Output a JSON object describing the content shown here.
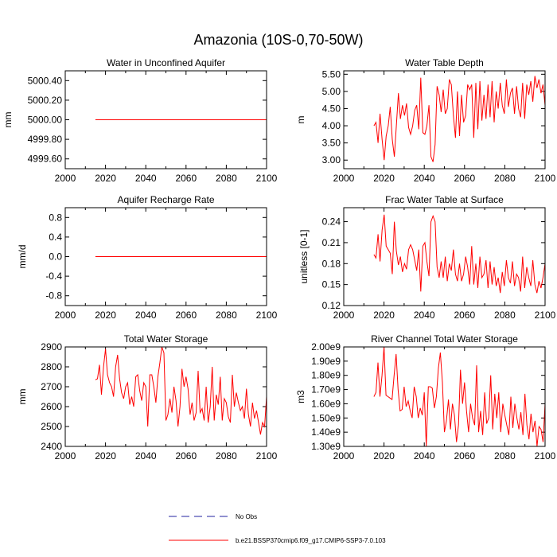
{
  "page_title": "Amazonia (10S-0,70-50W)",
  "colors": {
    "model": "#ff0000",
    "obs": "#2020a0",
    "axis": "#000000"
  },
  "legend": [
    {
      "label": "No Obs",
      "style": "dashed",
      "color": "#2020a0"
    },
    {
      "label": "b.e21.BSSP370cmip6.f09_g17.CMIP6-SSP3-7.0.103",
      "style": "solid",
      "color": "#ff0000"
    }
  ],
  "chart_data": [
    {
      "id": "p1",
      "type": "line",
      "title": "Water in Unconfined Aquifer",
      "ylabel": "mm",
      "xlim": [
        2000,
        2100
      ],
      "xticks": [
        2000,
        2020,
        2040,
        2060,
        2080,
        2100
      ],
      "ylim": [
        4999.5,
        5000.5
      ],
      "yticks": [
        4999.6,
        4999.8,
        5000.0,
        5000.2,
        5000.4
      ],
      "ytick_labels": [
        "4999.60",
        "4999.80",
        "5000.00",
        "5000.20",
        "5000.40"
      ],
      "series": [
        {
          "name": "b.e21.BSSP370cmip6.f09_g17.CMIP6-SSP3-7.0.103",
          "x_start": 2015,
          "x_end": 2100,
          "values": [
            5000.0,
            5000.0
          ]
        }
      ]
    },
    {
      "id": "p2",
      "type": "line",
      "title": "Water Table Depth",
      "ylabel": "m",
      "xlim": [
        2000,
        2100
      ],
      "xticks": [
        2000,
        2020,
        2040,
        2060,
        2080,
        2100
      ],
      "ylim": [
        2.75,
        5.6
      ],
      "yticks": [
        3.0,
        3.5,
        4.0,
        4.5,
        5.0,
        5.5
      ],
      "ytick_labels": [
        "3.00",
        "3.50",
        "4.00",
        "4.50",
        "5.00",
        "5.50"
      ],
      "series": [
        {
          "name": "b.e21.BSSP370cmip6.f09_g17.CMIP6-SSP3-7.0.103",
          "x_start": 2015,
          "x_end": 2100,
          "values": [
            4.0,
            4.1,
            3.5,
            4.35,
            3.6,
            3.0,
            3.7,
            4.0,
            4.55,
            3.6,
            3.1,
            4.0,
            4.95,
            4.2,
            4.6,
            4.3,
            4.65,
            3.95,
            3.75,
            4.0,
            4.45,
            4.6,
            3.9,
            5.4,
            3.8,
            3.75,
            4.0,
            4.6,
            3.1,
            2.95,
            3.45,
            5.15,
            4.9,
            4.4,
            5.05,
            4.35,
            4.5,
            5.35,
            5.2,
            4.3,
            3.65,
            5.0,
            3.7,
            4.9,
            4.1,
            4.3,
            5.2,
            5.05,
            5.2,
            3.65,
            5.25,
            3.9,
            5.3,
            4.15,
            4.9,
            4.2,
            5.2,
            4.25,
            5.3,
            4.1,
            5.0,
            4.5,
            5.25,
            4.6,
            4.35,
            5.35,
            4.55,
            4.95,
            5.1,
            4.35,
            5.15,
            4.5,
            4.25,
            5.25,
            4.2,
            5.2,
            4.9,
            5.3,
            4.7,
            5.45,
            5.1,
            5.35,
            4.95,
            5.2,
            4.6
          ]
        }
      ]
    },
    {
      "id": "p3",
      "type": "line",
      "title": "Aquifer Recharge Rate",
      "ylabel": "mm/d",
      "xlim": [
        2000,
        2100
      ],
      "xticks": [
        2000,
        2020,
        2040,
        2060,
        2080,
        2100
      ],
      "ylim": [
        -1.0,
        1.0
      ],
      "yticks": [
        -0.8,
        -0.4,
        0.0,
        0.4,
        0.8
      ],
      "ytick_labels": [
        "-0.8",
        "-0.4",
        "0.0",
        "0.4",
        "0.8"
      ],
      "series": [
        {
          "name": "b.e21.BSSP370cmip6.f09_g17.CMIP6-SSP3-7.0.103",
          "x_start": 2015,
          "x_end": 2100,
          "values": [
            0.0,
            0.0
          ]
        }
      ]
    },
    {
      "id": "p4",
      "type": "line",
      "title": "Frac Water Table at Surface",
      "ylabel": "unitless [0-1]",
      "xlim": [
        2000,
        2100
      ],
      "xticks": [
        2000,
        2020,
        2040,
        2060,
        2080,
        2100
      ],
      "ylim": [
        0.12,
        0.26
      ],
      "yticks": [
        0.12,
        0.15,
        0.18,
        0.21,
        0.24
      ],
      "ytick_labels": [
        "0.12",
        "0.15",
        "0.18",
        "0.21",
        "0.24"
      ],
      "series": [
        {
          "name": "b.e21.BSSP370cmip6.f09_g17.CMIP6-SSP3-7.0.103",
          "x_start": 2015,
          "x_end": 2100,
          "values": [
            0.193,
            0.188,
            0.222,
            0.183,
            0.228,
            0.25,
            0.205,
            0.2,
            0.195,
            0.165,
            0.24,
            0.198,
            0.178,
            0.19,
            0.168,
            0.18,
            0.172,
            0.2,
            0.207,
            0.2,
            0.185,
            0.17,
            0.2,
            0.14,
            0.205,
            0.21,
            0.183,
            0.162,
            0.24,
            0.248,
            0.24,
            0.175,
            0.16,
            0.183,
            0.16,
            0.19,
            0.155,
            0.18,
            0.17,
            0.2,
            0.165,
            0.155,
            0.18,
            0.155,
            0.165,
            0.19,
            0.175,
            0.15,
            0.205,
            0.15,
            0.18,
            0.145,
            0.19,
            0.16,
            0.165,
            0.185,
            0.145,
            0.183,
            0.15,
            0.175,
            0.148,
            0.16,
            0.138,
            0.168,
            0.148,
            0.185,
            0.16,
            0.152,
            0.183,
            0.148,
            0.165,
            0.16,
            0.14,
            0.19,
            0.145,
            0.175,
            0.16,
            0.148,
            0.185,
            0.15,
            0.138,
            0.155,
            0.145,
            0.16,
            0.18
          ]
        }
      ]
    },
    {
      "id": "p5",
      "type": "line",
      "title": "Total Water Storage",
      "ylabel": "mm",
      "xlim": [
        2000,
        2100
      ],
      "xticks": [
        2000,
        2020,
        2040,
        2060,
        2080,
        2100
      ],
      "ylim": [
        2400,
        2900
      ],
      "yticks": [
        2400,
        2500,
        2600,
        2700,
        2800,
        2900
      ],
      "ytick_labels": [
        "2400",
        "2500",
        "2600",
        "2700",
        "2800",
        "2900"
      ],
      "series": [
        {
          "name": "b.e21.BSSP370cmip6.f09_g17.CMIP6-SSP3-7.0.103",
          "x_start": 2015,
          "x_end": 2100,
          "values": [
            2735,
            2740,
            2810,
            2660,
            2800,
            2890,
            2760,
            2720,
            2700,
            2650,
            2800,
            2860,
            2740,
            2670,
            2640,
            2700,
            2720,
            2610,
            2650,
            2600,
            2750,
            2760,
            2680,
            2630,
            2720,
            2700,
            2500,
            2760,
            2760,
            2700,
            2620,
            2750,
            2820,
            2900,
            2870,
            2530,
            2560,
            2640,
            2570,
            2700,
            2630,
            2500,
            2600,
            2790,
            2700,
            2750,
            2690,
            2560,
            2620,
            2530,
            2570,
            2780,
            2570,
            2590,
            2530,
            2700,
            2520,
            2600,
            2800,
            2530,
            2660,
            2610,
            2750,
            2530,
            2640,
            2620,
            2550,
            2520,
            2760,
            2600,
            2670,
            2620,
            2580,
            2600,
            2540,
            2690,
            2560,
            2500,
            2620,
            2540,
            2580,
            2520,
            2460,
            2520,
            2500,
            2650
          ]
        }
      ]
    },
    {
      "id": "p6",
      "type": "line",
      "title": "River Channel Total Water Storage",
      "ylabel": "m3",
      "xlim": [
        2000,
        2100
      ],
      "xticks": [
        2000,
        2020,
        2040,
        2060,
        2080,
        2100
      ],
      "ylim": [
        1300000000.0,
        2000000000.0
      ],
      "yticks": [
        1300000000.0,
        1400000000.0,
        1500000000.0,
        1600000000.0,
        1700000000.0,
        1800000000.0,
        1900000000.0,
        2000000000.0
      ],
      "ytick_labels": [
        "1.30e9",
        "1.40e9",
        "1.50e9",
        "1.60e9",
        "1.70e9",
        "1.80e9",
        "1.90e9",
        "2.00e9"
      ],
      "series": [
        {
          "name": "b.e21.BSSP370cmip6.f09_g17.CMIP6-SSP3-7.0.103",
          "x_start": 2015,
          "x_end": 2100,
          "values": [
            1650000000.0,
            1680000000.0,
            1890000000.0,
            1650000000.0,
            1800000000.0,
            2000000000.0,
            1660000000.0,
            1650000000.0,
            1640000000.0,
            1630000000.0,
            1800000000.0,
            1950000000.0,
            1700000000.0,
            1550000000.0,
            1560000000.0,
            1720000000.0,
            1580000000.0,
            1620000000.0,
            1550000000.0,
            1500000000.0,
            1720000000.0,
            1650000000.0,
            1500000000.0,
            1570000000.0,
            1520000000.0,
            1680000000.0,
            1300000000.0,
            1720000000.0,
            1720000000.0,
            1710000000.0,
            1570000000.0,
            1650000000.0,
            1850000000.0,
            1960000000.0,
            1750000000.0,
            1400000000.0,
            1480000000.0,
            1630000000.0,
            1420000000.0,
            1600000000.0,
            1520000000.0,
            1330000000.0,
            1450000000.0,
            1840000000.0,
            1600000000.0,
            1750000000.0,
            1550000000.0,
            1400000000.0,
            1600000000.0,
            1500000000.0,
            1450000000.0,
            1870000000.0,
            1400000000.0,
            1550000000.0,
            1380000000.0,
            1680000000.0,
            1460000000.0,
            1500000000.0,
            1800000000.0,
            1420000000.0,
            1670000000.0,
            1500000000.0,
            1680000000.0,
            1400000000.0,
            1600000000.0,
            1520000000.0,
            1450000000.0,
            1380000000.0,
            1650000000.0,
            1430000000.0,
            1600000000.0,
            1500000000.0,
            1420000000.0,
            1540000000.0,
            1380000000.0,
            1670000000.0,
            1450000000.0,
            1350000000.0,
            1530000000.0,
            1400000000.0,
            1480000000.0,
            1300000000.0,
            1440000000.0,
            1420000000.0,
            1330000000.0,
            1600000000.0
          ]
        }
      ]
    }
  ]
}
